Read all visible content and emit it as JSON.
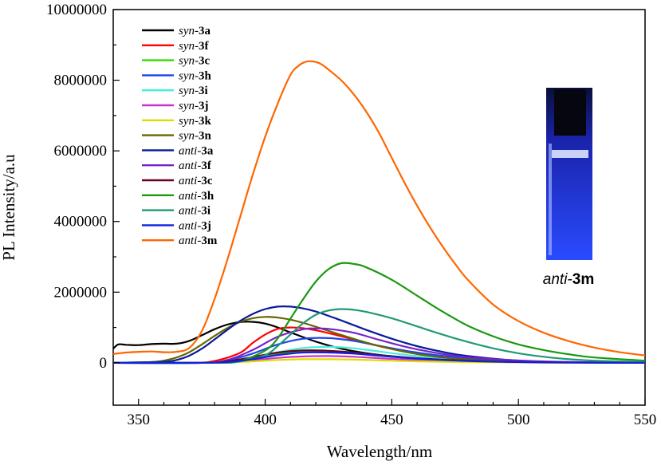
{
  "chart_data": {
    "type": "line",
    "xlabel": "Wavelength/nm",
    "ylabel": "PL Intensity/a.u",
    "xlim": [
      340,
      550
    ],
    "ylim": [
      -1200000,
      10000000
    ],
    "xticks": [
      350,
      400,
      450,
      500,
      550
    ],
    "yticks": [
      0,
      2000000,
      4000000,
      6000000,
      8000000,
      10000000
    ],
    "legend_position": "top-left",
    "series": [
      {
        "name_prefix": "syn-",
        "name_suffix": "3a",
        "color": "#000000",
        "x": [
          340,
          342,
          345,
          350,
          355,
          360,
          365,
          370,
          375,
          380,
          385,
          390,
          395,
          400,
          405,
          410,
          420,
          430,
          440,
          450,
          460,
          470,
          480,
          500,
          520,
          550
        ],
        "y": [
          400000,
          520000,
          510000,
          500000,
          530000,
          540000,
          540000,
          620000,
          780000,
          950000,
          1080000,
          1150000,
          1160000,
          1110000,
          1000000,
          860000,
          600000,
          400000,
          270000,
          180000,
          110000,
          70000,
          40000,
          15000,
          5000,
          0
        ]
      },
      {
        "name_prefix": "syn-",
        "name_suffix": "3f",
        "color": "#ff0000",
        "x": [
          340,
          370,
          380,
          390,
          395,
          400,
          405,
          410,
          415,
          420,
          425,
          430,
          440,
          450,
          460,
          470,
          480,
          500,
          520,
          550
        ],
        "y": [
          0,
          0,
          50000,
          280000,
          560000,
          800000,
          960000,
          1000000,
          980000,
          920000,
          840000,
          750000,
          560000,
          390000,
          250000,
          150000,
          80000,
          25000,
          5000,
          0
        ]
      },
      {
        "name_prefix": "syn-",
        "name_suffix": "3c",
        "color": "#33dd00",
        "x": [
          340,
          375,
          385,
          395,
          405,
          415,
          425,
          435,
          445,
          460,
          480,
          510,
          550
        ],
        "y": [
          0,
          0,
          30000,
          130000,
          260000,
          330000,
          330000,
          290000,
          220000,
          130000,
          60000,
          15000,
          0
        ]
      },
      {
        "name_prefix": "syn-",
        "name_suffix": "3h",
        "color": "#1e44ee",
        "x": [
          340,
          375,
          385,
          395,
          405,
          415,
          425,
          435,
          445,
          460,
          480,
          510,
          550
        ],
        "y": [
          0,
          0,
          60000,
          260000,
          520000,
          680000,
          700000,
          620000,
          480000,
          290000,
          130000,
          30000,
          0
        ]
      },
      {
        "name_prefix": "syn-",
        "name_suffix": "3i",
        "color": "#44eedd",
        "x": [
          340,
          375,
          385,
          395,
          405,
          415,
          425,
          435,
          445,
          460,
          480,
          510,
          550
        ],
        "y": [
          0,
          0,
          30000,
          130000,
          300000,
          420000,
          450000,
          410000,
          320000,
          190000,
          80000,
          20000,
          0
        ]
      },
      {
        "name_prefix": "syn-",
        "name_suffix": "3j",
        "color": "#cc33cc",
        "x": [
          340,
          375,
          385,
          395,
          405,
          415,
          425,
          435,
          445,
          460,
          480,
          510,
          550
        ],
        "y": [
          0,
          0,
          20000,
          70000,
          140000,
          180000,
          190000,
          170000,
          130000,
          80000,
          35000,
          8000,
          0
        ]
      },
      {
        "name_prefix": "syn-",
        "name_suffix": "3k",
        "color": "#dddd00",
        "x": [
          340,
          375,
          385,
          395,
          405,
          415,
          425,
          435,
          445,
          460,
          480,
          510,
          550
        ],
        "y": [
          0,
          0,
          10000,
          40000,
          80000,
          100000,
          100000,
          90000,
          70000,
          40000,
          20000,
          5000,
          0
        ]
      },
      {
        "name_prefix": "syn-",
        "name_suffix": "3n",
        "color": "#666600",
        "x": [
          340,
          355,
          360,
          365,
          370,
          375,
          380,
          385,
          390,
          395,
          400,
          405,
          410,
          415,
          420,
          430,
          440,
          450,
          460,
          470,
          480,
          500,
          520,
          550
        ],
        "y": [
          0,
          20000,
          60000,
          150000,
          300000,
          520000,
          760000,
          980000,
          1150000,
          1260000,
          1300000,
          1280000,
          1220000,
          1130000,
          1020000,
          790000,
          570000,
          390000,
          250000,
          150000,
          90000,
          30000,
          8000,
          0
        ]
      },
      {
        "name_prefix": "anti-",
        "name_suffix": "3a",
        "color": "#0a1a99",
        "x": [
          340,
          360,
          365,
          370,
          375,
          380,
          385,
          390,
          395,
          400,
          405,
          410,
          415,
          420,
          425,
          430,
          440,
          450,
          460,
          470,
          480,
          500,
          520,
          550
        ],
        "y": [
          0,
          30000,
          80000,
          200000,
          400000,
          660000,
          930000,
          1180000,
          1380000,
          1520000,
          1590000,
          1590000,
          1540000,
          1450000,
          1330000,
          1200000,
          930000,
          680000,
          470000,
          310000,
          190000,
          60000,
          15000,
          0
        ]
      },
      {
        "name_prefix": "anti-",
        "name_suffix": "3f",
        "color": "#7722cc",
        "x": [
          340,
          375,
          385,
          395,
          405,
          415,
          420,
          425,
          435,
          445,
          460,
          480,
          510,
          550
        ],
        "y": [
          0,
          0,
          80000,
          360000,
          740000,
          950000,
          970000,
          960000,
          850000,
          650000,
          380000,
          160000,
          40000,
          0
        ]
      },
      {
        "name_prefix": "anti-",
        "name_suffix": "3c",
        "color": "#660022",
        "x": [
          340,
          375,
          385,
          395,
          405,
          415,
          425,
          435,
          445,
          460,
          480,
          510,
          550
        ],
        "y": [
          0,
          0,
          40000,
          160000,
          290000,
          350000,
          340000,
          290000,
          220000,
          130000,
          60000,
          15000,
          0
        ]
      },
      {
        "name_prefix": "anti-",
        "name_suffix": "3h",
        "color": "#1a9911",
        "x": [
          340,
          380,
          390,
          400,
          405,
          410,
          415,
          420,
          425,
          430,
          435,
          440,
          450,
          460,
          470,
          480,
          490,
          500,
          510,
          520,
          530,
          550
        ],
        "y": [
          0,
          0,
          50000,
          350000,
          700000,
          1250000,
          1800000,
          2300000,
          2650000,
          2820000,
          2800000,
          2700000,
          2350000,
          1900000,
          1450000,
          1050000,
          750000,
          520000,
          360000,
          240000,
          150000,
          60000
        ]
      },
      {
        "name_prefix": "anti-",
        "name_suffix": "3i",
        "color": "#229977",
        "x": [
          340,
          380,
          390,
          400,
          405,
          410,
          415,
          420,
          425,
          430,
          435,
          440,
          450,
          460,
          470,
          480,
          490,
          500,
          510,
          520,
          530,
          550
        ],
        "y": [
          0,
          0,
          40000,
          220000,
          480000,
          800000,
          1120000,
          1360000,
          1480000,
          1520000,
          1500000,
          1440000,
          1260000,
          1030000,
          800000,
          590000,
          410000,
          270000,
          170000,
          100000,
          60000,
          20000
        ]
      },
      {
        "name_prefix": "anti-",
        "name_suffix": "3j",
        "color": "#1122dd",
        "x": [
          340,
          375,
          385,
          395,
          405,
          415,
          425,
          435,
          445,
          460,
          480,
          510,
          550
        ],
        "y": [
          0,
          0,
          20000,
          100000,
          220000,
          290000,
          290000,
          260000,
          200000,
          120000,
          50000,
          12000,
          0
        ]
      },
      {
        "name_prefix": "anti-",
        "name_suffix": "3m",
        "color": "#ff6600",
        "x": [
          340,
          345,
          350,
          355,
          360,
          365,
          370,
          375,
          380,
          385,
          390,
          395,
          400,
          405,
          410,
          413,
          416,
          419,
          422,
          425,
          430,
          435,
          440,
          445,
          450,
          455,
          460,
          465,
          470,
          475,
          480,
          490,
          500,
          510,
          520,
          530,
          540,
          550
        ],
        "y": [
          250000,
          290000,
          310000,
          320000,
          300000,
          310000,
          420000,
          900000,
          1800000,
          2900000,
          4100000,
          5300000,
          6400000,
          7350000,
          8150000,
          8400000,
          8520000,
          8530000,
          8460000,
          8300000,
          8000000,
          7600000,
          7100000,
          6500000,
          5800000,
          5100000,
          4450000,
          3850000,
          3300000,
          2800000,
          2350000,
          1650000,
          1180000,
          850000,
          610000,
          430000,
          300000,
          210000
        ]
      }
    ],
    "inset_label_prefix": "anti-",
    "inset_label_suffix": "3m"
  }
}
